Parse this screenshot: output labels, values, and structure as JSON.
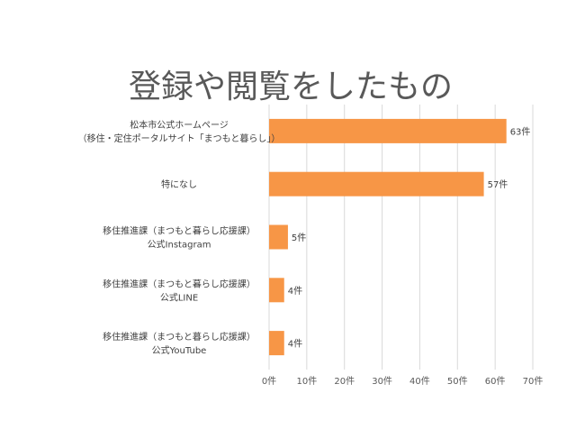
{
  "chart_data": {
    "type": "bar",
    "orientation": "horizontal",
    "title": "登録や閲覧をしたもの",
    "categories": [
      [
        "松本市公式ホームページ",
        "（移住・定住ポータルサイト「まつもと暮らし」）"
      ],
      [
        "特になし"
      ],
      [
        "移住推進課（まつもと暮らし応援課）",
        "公式Instagram"
      ],
      [
        "移住推進課（まつもと暮らし応援課）",
        "公式LINE"
      ],
      [
        "移住推進課（まつもと暮らし応援課）",
        "公式YouTube"
      ]
    ],
    "values": [
      63,
      57,
      5,
      4,
      4
    ],
    "data_labels": [
      "63件",
      "57件",
      "5件",
      "4件",
      "4件"
    ],
    "x_ticks": [
      "0件",
      "10件",
      "20件",
      "30件",
      "40件",
      "50件",
      "60件",
      "70件"
    ],
    "xlim": [
      0,
      70
    ],
    "bar_color": "#F79646",
    "grid": true,
    "grid_color": "#D9D9D9",
    "legend": "none"
  }
}
